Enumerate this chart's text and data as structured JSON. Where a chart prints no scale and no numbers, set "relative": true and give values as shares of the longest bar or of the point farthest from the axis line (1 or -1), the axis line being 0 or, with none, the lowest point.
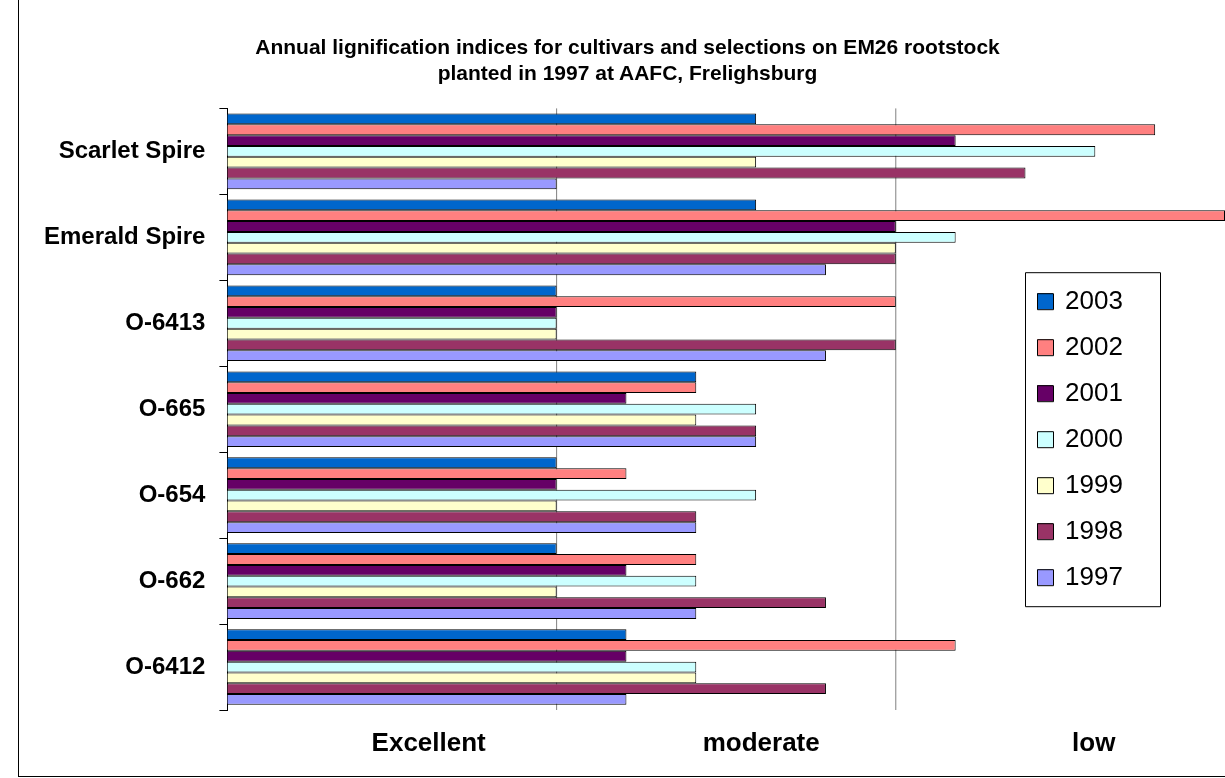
{
  "chart_data": {
    "type": "bar",
    "orientation": "horizontal",
    "relative": true,
    "title": "Annual lignification indices for cultivars and selections on EM26 rootstock planted in 1997 at AAFC, Frelighsburg",
    "categories": [
      "Scarlet Spire",
      "Emerald Spire",
      "O-6413",
      "O-665",
      "O-654",
      "O-662",
      "O-6412"
    ],
    "series": [
      {
        "name": "2003",
        "color": "#0066cc",
        "values": [
          0.53,
          0.53,
          0.33,
          0.47,
          0.33,
          0.33,
          0.4
        ]
      },
      {
        "name": "2002",
        "color": "#ff8080",
        "values": [
          0.93,
          1,
          0.67,
          0.47,
          0.4,
          0.47,
          0.73
        ]
      },
      {
        "name": "2001",
        "color": "#660066",
        "values": [
          0.73,
          0.67,
          0.33,
          0.4,
          0.33,
          0.4,
          0.4
        ]
      },
      {
        "name": "2000",
        "color": "#ccffff",
        "values": [
          0.87,
          0.73,
          0.33,
          0.53,
          0.53,
          0.47,
          0.47
        ]
      },
      {
        "name": "1999",
        "color": "#ffffcc",
        "values": [
          0.53,
          0.67,
          0.33,
          0.47,
          0.33,
          0.33,
          0.47
        ]
      },
      {
        "name": "1998",
        "color": "#993366",
        "values": [
          0.8,
          0.67,
          0.67,
          0.53,
          0.47,
          0.6,
          0.6
        ]
      },
      {
        "name": "1997",
        "color": "#9999ff",
        "values": [
          0.33,
          0.6,
          0.6,
          0.53,
          0.47,
          0.47,
          0.4
        ]
      }
    ],
    "annotations": [
      "Excellent",
      "moderate",
      "low"
    ],
    "ref_lines": [
      {
        "axis": "x",
        "value": 0.33,
        "color": "#808080"
      },
      {
        "axis": "x",
        "value": 0.67,
        "color": "#808080"
      }
    ],
    "legend": "right"
  }
}
